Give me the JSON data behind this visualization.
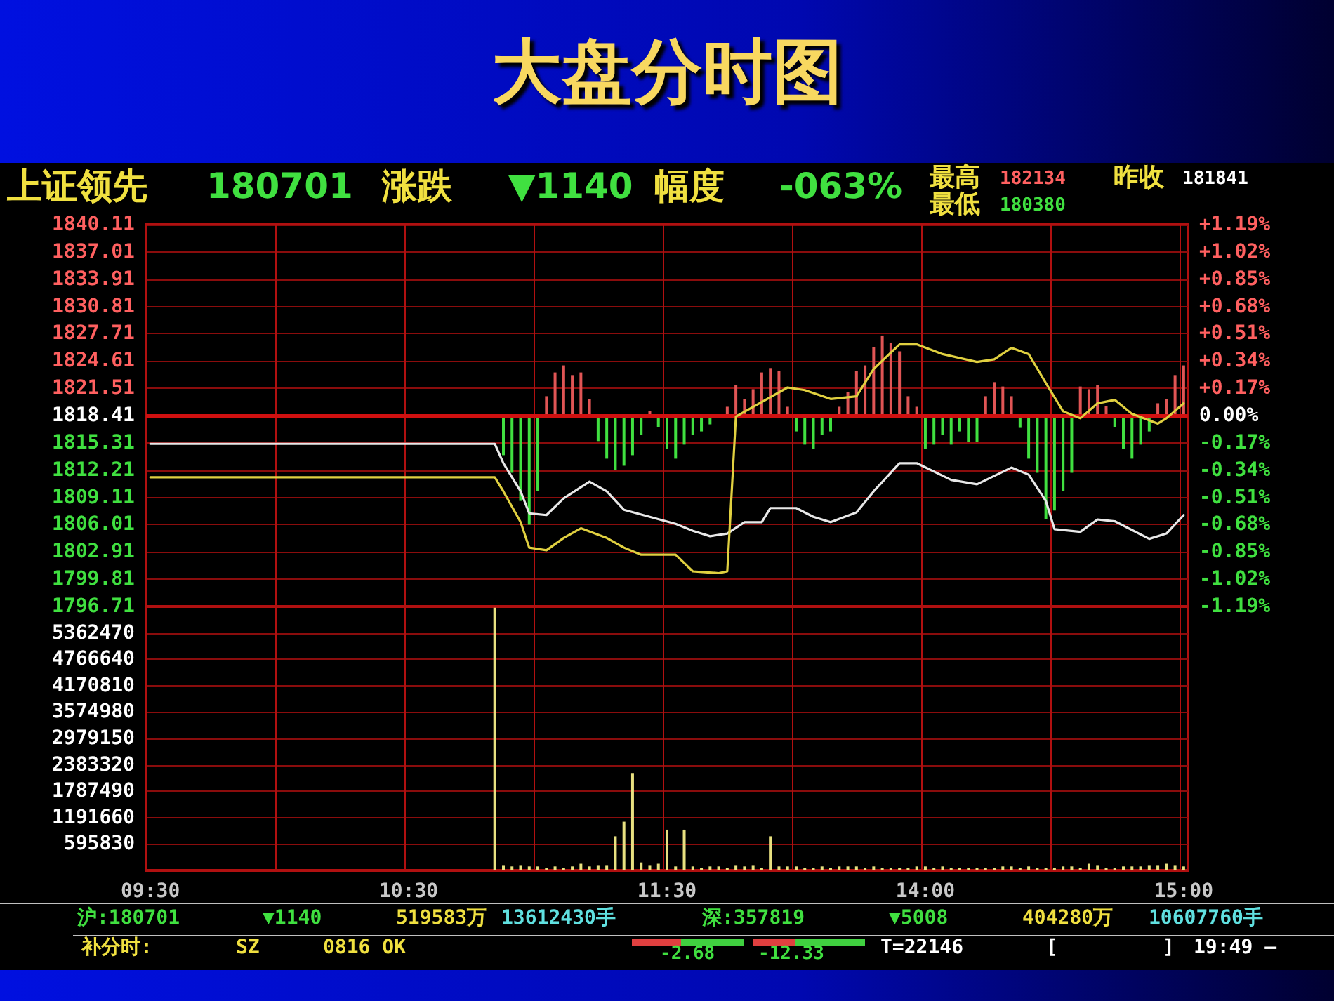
{
  "chart_data": [
    {
      "type": "line",
      "title": "大盘分时图",
      "annotations": [
        "上证领先",
        "180701",
        "涨跌",
        "▼1140",
        "幅度",
        "-063%",
        "最高",
        "182134",
        "最低",
        "180380",
        "昨收",
        "181841",
        "沪:180701",
        "▼1140",
        "519583万",
        "13612430手",
        "深:357819",
        "▼5008",
        "404280万",
        "10607760手",
        "补分时:",
        "SZ",
        "0816 OK",
        "-2.68",
        "-12.33",
        "T=22146",
        "[",
        "]",
        "19:49 —"
      ],
      "categories": [
        null,
        null,
        null,
        null,
        null,
        null,
        null,
        null,
        null,
        null,
        null,
        null,
        null,
        null,
        null,
        null,
        null,
        null,
        null,
        null,
        null,
        null,
        null,
        null,
        null,
        null,
        null,
        null,
        null,
        null,
        null,
        null,
        null,
        null,
        null,
        null,
        null,
        null,
        null,
        null,
        null,
        null,
        null,
        null,
        null,
        null,
        null,
        null,
        null,
        null,
        null,
        null,
        null,
        null,
        null,
        null,
        null,
        null,
        null,
        null,
        null,
        null,
        null,
        null,
        null,
        null,
        null,
        null,
        null,
        null,
        null,
        null,
        null,
        null,
        null,
        null,
        null,
        null,
        null,
        null,
        null,
        null,
        null,
        null,
        null,
        null,
        null,
        null,
        null,
        null,
        null,
        null,
        null,
        null,
        null,
        null,
        null,
        null,
        null,
        null,
        null,
        null,
        null,
        null,
        null,
        null,
        null,
        null,
        null,
        null,
        null,
        null,
        null,
        null,
        null,
        null,
        null,
        null,
        null,
        null,
        null
      ],
      "ylim": [
        1796.71,
        1840.11
      ],
      "yticks": [
        1796.71,
        1799.81,
        1802.91,
        1806.01,
        1809.11,
        1812.21,
        1815.31,
        1818.41,
        1821.51,
        1824.61,
        1827.71,
        1830.81,
        1833.91,
        1837.01,
        1840.11
      ],
      "y2lim": [
        -1.19,
        1.19
      ],
      "y2ticks": [
        {
          "value": -1.19,
          "label": "-1.19%"
        },
        {
          "value": -1.02,
          "label": "-1.02%"
        },
        {
          "value": -0.85,
          "label": "-0.85%"
        },
        {
          "value": -0.68,
          "label": "-0.68%"
        },
        {
          "value": -0.51,
          "label": "-0.51%"
        },
        {
          "value": -0.34,
          "label": "-0.34%"
        },
        {
          "value": -0.17,
          "label": "-0.17%"
        },
        {
          "value": 0,
          "label": "0.00%"
        },
        {
          "value": 0.17,
          "label": "+0.17%"
        },
        {
          "value": 0.34,
          "label": "+0.34%"
        },
        {
          "value": 0.51,
          "label": "+0.51%"
        },
        {
          "value": 0.68,
          "label": "+0.68%"
        },
        {
          "value": 0.85,
          "label": "+0.85%"
        },
        {
          "value": 1.02,
          "label": "+1.02%"
        },
        {
          "value": 1.19,
          "label": "+1.19%"
        }
      ],
      "tick_labels": "y",
      "grid": true,
      "line_style": "solid",
      "ref_lines": [
        {
          "axis": "y",
          "value": 1818.41,
          "color": "#d01010"
        }
      ],
      "series": [
        {
          "type": "bar",
          "color": "#e05555",
          "base": [
            null,
            null,
            null,
            null,
            null,
            null,
            null,
            null,
            null,
            null,
            null,
            null,
            null,
            null,
            null,
            null,
            null,
            null,
            null,
            null,
            null,
            null,
            null,
            null,
            null,
            null,
            null,
            null,
            null,
            null,
            null,
            null,
            null,
            null,
            null,
            null,
            null,
            null,
            null,
            null,
            null,
            null,
            null,
            null,
            null,
            null,
            1818.41,
            1818.41,
            1818.41,
            1818.41,
            1818.41,
            1818.41,
            null,
            null,
            null,
            null,
            null,
            null,
            1818.41,
            null,
            null,
            null,
            null,
            null,
            null,
            null,
            null,
            1818.41,
            1818.41,
            1818.41,
            1818.41,
            1818.41,
            1818.41,
            1818.41,
            1818.41,
            null,
            null,
            null,
            null,
            null,
            1818.41,
            1818.41,
            1818.41,
            1818.41,
            1818.41,
            1818.41,
            1818.41,
            1818.41,
            1818.41,
            1818.41,
            null,
            null,
            null,
            null,
            null,
            null,
            null,
            1818.41,
            1818.41,
            1818.41,
            1818.41,
            null,
            null,
            null,
            null,
            null,
            null,
            null,
            1818.41,
            1818.41,
            1818.41,
            1818.41,
            null,
            null,
            null,
            null,
            null,
            1818.41,
            1818.41,
            1818.41,
            1818.41
          ],
          "values": [
            null,
            null,
            null,
            null,
            null,
            null,
            null,
            null,
            null,
            null,
            null,
            null,
            null,
            null,
            null,
            null,
            null,
            null,
            null,
            null,
            null,
            null,
            null,
            null,
            null,
            null,
            null,
            null,
            null,
            null,
            null,
            null,
            null,
            null,
            null,
            null,
            null,
            null,
            null,
            null,
            null,
            null,
            null,
            null,
            null,
            null,
            2.2,
            4.9,
            5.7,
            4.6,
            4.9,
            1.9,
            null,
            null,
            null,
            null,
            null,
            null,
            0.5,
            null,
            null,
            null,
            null,
            null,
            null,
            null,
            null,
            1.0,
            3.5,
            1.9,
            3.0,
            4.9,
            5.4,
            5.1,
            1.0,
            null,
            null,
            null,
            null,
            null,
            1.0,
            2.7,
            5.1,
            5.7,
            7.8,
            9.1,
            8.3,
            7.3,
            2.2,
            1.0,
            null,
            null,
            null,
            null,
            null,
            null,
            null,
            2.2,
            3.8,
            3.3,
            2.2,
            null,
            null,
            null,
            null,
            null,
            null,
            null,
            3.3,
            3.0,
            3.5,
            1.1,
            null,
            null,
            null,
            null,
            null,
            1.4,
            1.9,
            4.6,
            5.7
          ]
        },
        {
          "type": "bar",
          "color": "#40e040",
          "base": [
            null,
            null,
            null,
            null,
            null,
            null,
            null,
            null,
            null,
            null,
            null,
            null,
            null,
            null,
            null,
            null,
            null,
            null,
            null,
            null,
            null,
            null,
            null,
            null,
            null,
            null,
            null,
            null,
            null,
            null,
            null,
            null,
            null,
            null,
            null,
            null,
            null,
            null,
            null,
            null,
            null,
            1818.41,
            1818.41,
            1818.41,
            1818.41,
            1818.41,
            null,
            null,
            null,
            null,
            null,
            null,
            1818.41,
            1818.41,
            1818.41,
            1818.41,
            1818.41,
            1818.41,
            null,
            1818.41,
            1818.41,
            1818.41,
            1818.41,
            1818.41,
            1818.41,
            1818.41,
            null,
            null,
            null,
            null,
            null,
            null,
            null,
            null,
            null,
            1818.41,
            1818.41,
            1818.41,
            1818.41,
            1818.41,
            null,
            null,
            null,
            null,
            null,
            null,
            null,
            null,
            null,
            null,
            1818.41,
            1818.41,
            1818.41,
            1818.41,
            1818.41,
            1818.41,
            1818.41,
            null,
            null,
            null,
            null,
            1818.41,
            1818.41,
            1818.41,
            1818.41,
            1818.41,
            1818.41,
            1818.41,
            null,
            null,
            null,
            null,
            1818.41,
            1818.41,
            1818.41,
            1818.41,
            1818.41,
            null,
            null,
            null,
            null
          ],
          "values": [
            null,
            null,
            null,
            null,
            null,
            null,
            null,
            null,
            null,
            null,
            null,
            null,
            null,
            null,
            null,
            null,
            null,
            null,
            null,
            null,
            null,
            null,
            null,
            null,
            null,
            null,
            null,
            null,
            null,
            null,
            null,
            null,
            null,
            null,
            null,
            null,
            null,
            null,
            null,
            null,
            null,
            -4.5,
            -6.5,
            -9.7,
            -12.4,
            -8.6,
            null,
            null,
            null,
            null,
            null,
            null,
            -2.9,
            -4.9,
            -6.2,
            -5.7,
            -4.5,
            -2.2,
            null,
            -1.3,
            -3.8,
            -4.9,
            -3.3,
            -2.2,
            -1.8,
            -1.0,
            null,
            null,
            null,
            null,
            null,
            null,
            null,
            null,
            null,
            -1.8,
            -3.3,
            -3.8,
            -2.2,
            -1.8,
            null,
            null,
            null,
            null,
            null,
            null,
            null,
            null,
            null,
            null,
            -3.8,
            -3.3,
            -2.2,
            -3.3,
            -1.8,
            -3.0,
            -3.0,
            null,
            null,
            null,
            null,
            -1.4,
            -4.9,
            -6.5,
            -11.8,
            -10.8,
            -8.6,
            -6.5,
            null,
            null,
            null,
            null,
            -1.3,
            -3.8,
            -4.9,
            -3.3,
            -1.8,
            null,
            null,
            null,
            null
          ]
        },
        {
          "color": "#e8e8e8",
          "values": [
            1815.2,
            null,
            null,
            null,
            null,
            null,
            null,
            null,
            null,
            null,
            null,
            null,
            null,
            null,
            null,
            null,
            null,
            null,
            null,
            null,
            null,
            null,
            null,
            null,
            null,
            null,
            null,
            null,
            null,
            null,
            null,
            null,
            null,
            null,
            null,
            null,
            null,
            null,
            null,
            null,
            1815.2,
            1813.0,
            null,
            1809.8,
            1807.3,
            null,
            1807.1,
            null,
            1809.0,
            null,
            null,
            1810.9,
            null,
            1809.8,
            null,
            1807.7,
            null,
            null,
            1806.9,
            null,
            null,
            1806.1,
            null,
            1805.3,
            null,
            1804.7,
            null,
            1805.0,
            null,
            1806.3,
            null,
            1806.3,
            1807.9,
            null,
            null,
            1807.9,
            null,
            1806.9,
            null,
            1806.3,
            null,
            null,
            1807.4,
            null,
            1809.8,
            null,
            null,
            1813.0,
            null,
            1813.0,
            null,
            null,
            null,
            1811.1,
            null,
            null,
            1810.6,
            null,
            null,
            null,
            1812.5,
            null,
            1811.7,
            null,
            1808.7,
            1805.5,
            null,
            null,
            1805.2,
            null,
            1806.6,
            null,
            1806.4,
            null,
            null,
            null,
            1804.4,
            null,
            1805.0,
            null,
            1807.1
          ]
        },
        {
          "color": "#e0d040",
          "values": [
            1811.4,
            null,
            null,
            null,
            null,
            null,
            null,
            null,
            null,
            null,
            null,
            null,
            null,
            null,
            null,
            null,
            null,
            null,
            null,
            null,
            null,
            null,
            null,
            null,
            null,
            null,
            null,
            null,
            null,
            null,
            null,
            null,
            null,
            null,
            null,
            null,
            null,
            null,
            null,
            null,
            1811.4,
            1809.8,
            null,
            1806.3,
            1803.4,
            null,
            1803.1,
            null,
            1804.5,
            null,
            1805.6,
            null,
            null,
            1804.5,
            null,
            1803.4,
            null,
            1802.6,
            null,
            null,
            null,
            1802.6,
            null,
            1800.7,
            null,
            null,
            1800.5,
            1800.7,
            1818.3,
            null,
            1819.4,
            null,
            null,
            null,
            1821.6,
            null,
            1821.3,
            null,
            null,
            1820.3,
            null,
            null,
            1820.6,
            null,
            1823.7,
            null,
            null,
            1826.5,
            null,
            1826.5,
            null,
            null,
            1825.4,
            null,
            null,
            null,
            1824.5,
            null,
            1824.8,
            null,
            1826.1,
            null,
            1825.4,
            null,
            1822.1,
            null,
            1818.9,
            null,
            1818.1,
            null,
            1819.8,
            null,
            1820.2,
            null,
            1818.6,
            null,
            null,
            1817.5,
            1818.1,
            null,
            1819.8
          ]
        }
      ]
    },
    {
      "type": "bar",
      "categories": [
        "09:30",
        null,
        null,
        null,
        null,
        null,
        null,
        null,
        null,
        null,
        null,
        null,
        null,
        null,
        null,
        null,
        null,
        null,
        null,
        null,
        null,
        null,
        null,
        null,
        null,
        null,
        null,
        null,
        null,
        null,
        "10:30",
        null,
        null,
        null,
        null,
        null,
        null,
        null,
        null,
        null,
        null,
        null,
        null,
        null,
        null,
        null,
        null,
        null,
        null,
        null,
        null,
        null,
        null,
        null,
        null,
        null,
        null,
        null,
        null,
        null,
        "11:30",
        null,
        null,
        null,
        null,
        null,
        null,
        null,
        null,
        null,
        null,
        null,
        null,
        null,
        null,
        null,
        null,
        null,
        null,
        null,
        null,
        null,
        null,
        null,
        null,
        null,
        null,
        null,
        null,
        null,
        "14:00",
        null,
        null,
        null,
        null,
        null,
        null,
        null,
        null,
        null,
        null,
        null,
        null,
        null,
        null,
        null,
        null,
        null,
        null,
        null,
        null,
        null,
        null,
        null,
        null,
        null,
        null,
        null,
        null,
        null,
        "15:00"
      ],
      "ylim": [
        0,
        5958300
      ],
      "yticks": [
        595830,
        1191660,
        1787490,
        2383320,
        2979150,
        3574980,
        4170810,
        4766640,
        5362470
      ],
      "grid": true,
      "color": "#e8e080",
      "values": [
        null,
        null,
        null,
        null,
        null,
        null,
        null,
        null,
        null,
        null,
        null,
        null,
        null,
        null,
        null,
        null,
        null,
        null,
        null,
        null,
        null,
        null,
        null,
        null,
        null,
        null,
        null,
        null,
        null,
        null,
        null,
        null,
        null,
        null,
        null,
        null,
        null,
        null,
        null,
        null,
        5930000,
        120000,
        90000,
        120000,
        90000,
        90000,
        60000,
        90000,
        60000,
        90000,
        150000,
        90000,
        120000,
        120000,
        770000,
        1100000,
        2200000,
        180000,
        120000,
        150000,
        920000,
        90000,
        920000,
        90000,
        60000,
        90000,
        90000,
        60000,
        120000,
        90000,
        120000,
        60000,
        770000,
        90000,
        90000,
        90000,
        60000,
        60000,
        90000,
        60000,
        90000,
        90000,
        90000,
        60000,
        90000,
        60000,
        60000,
        60000,
        60000,
        90000,
        90000,
        60000,
        90000,
        60000,
        60000,
        60000,
        60000,
        60000,
        60000,
        90000,
        90000,
        60000,
        90000,
        60000,
        60000,
        60000,
        90000,
        90000,
        60000,
        150000,
        120000,
        60000,
        60000,
        90000,
        90000,
        90000,
        120000,
        120000,
        150000,
        120000,
        90000
      ]
    }
  ]
}
